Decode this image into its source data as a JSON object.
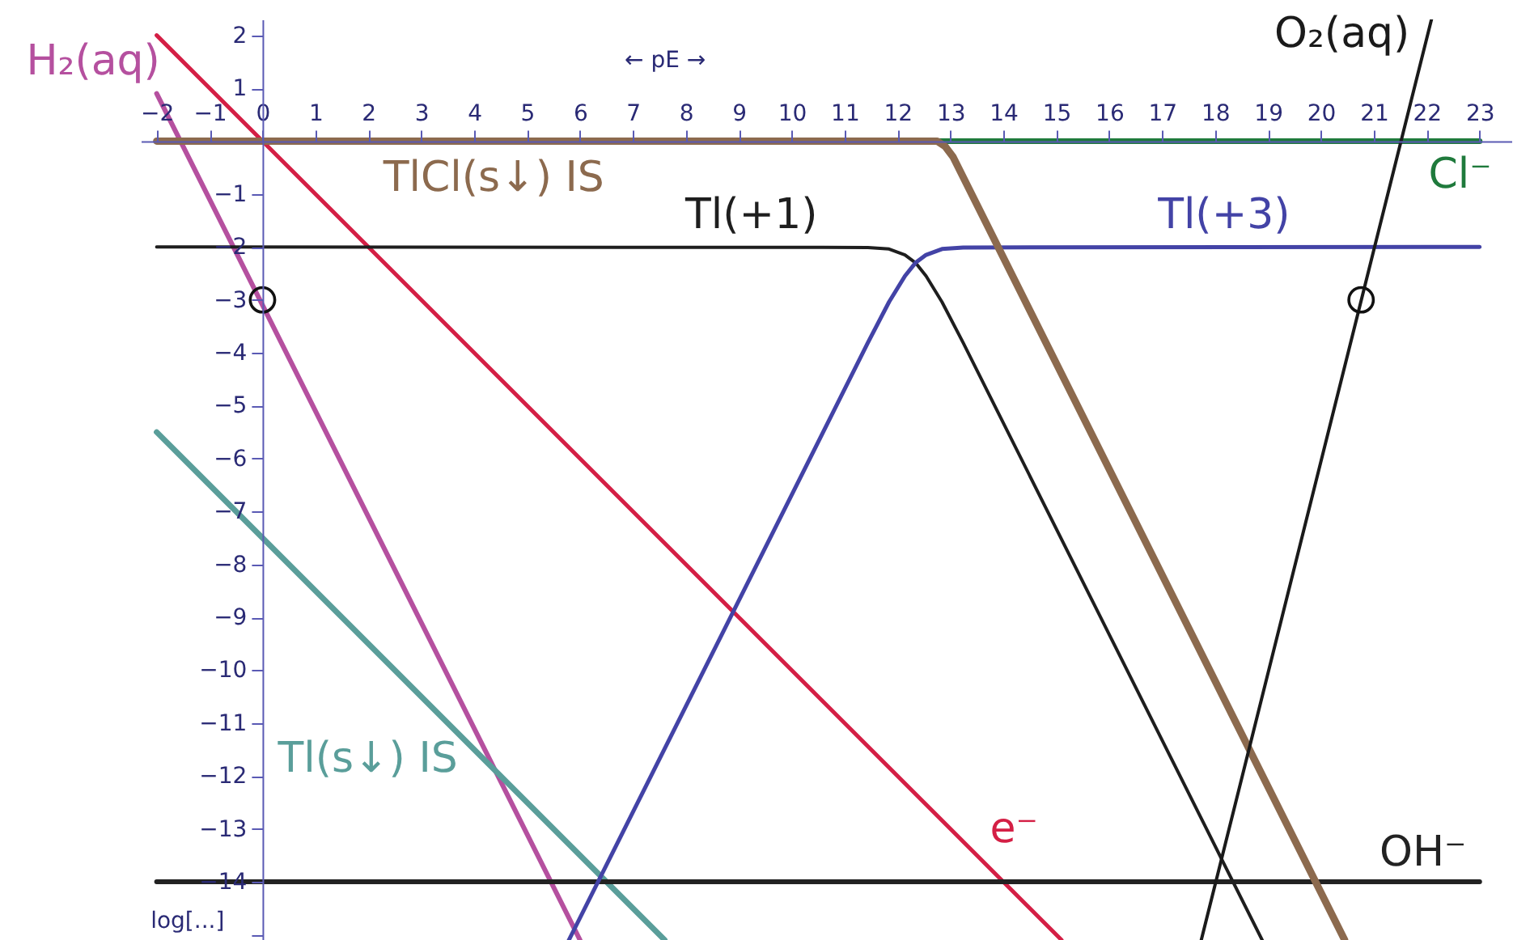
{
  "chart_data": {
    "type": "line",
    "xlabel": "← pE →",
    "ylabel": "log[...]",
    "xlim": [
      -2.3,
      23.6
    ],
    "ylim": [
      -15.1,
      2.3
    ],
    "xticks": [
      -2,
      -1,
      0,
      1,
      2,
      3,
      4,
      5,
      6,
      7,
      8,
      9,
      10,
      11,
      12,
      13,
      14,
      15,
      16,
      17,
      18,
      19,
      20,
      21,
      22,
      23
    ],
    "yticks": [
      2,
      1,
      -1,
      -2,
      -3,
      -4,
      -5,
      -6,
      -7,
      -8,
      -9,
      -10,
      -11,
      -12,
      -13,
      -14,
      {
        "value": -15,
        "label": null
      }
    ],
    "series": [
      {
        "name": "H₂(aq)",
        "color": "#b5509f",
        "x": [
          -2,
          6
        ],
        "values": [
          0.9,
          -15.1
        ]
      },
      {
        "name": "e⁻",
        "color": "#d41f45",
        "x": [
          -2,
          15.1
        ],
        "values": [
          2,
          -15.1
        ]
      },
      {
        "name": "Tl(s↓) IS",
        "color": "#5a9e9a",
        "x": [
          -2,
          7.6
        ],
        "values": [
          -5.5,
          -15.1
        ]
      },
      {
        "name": "OH⁻",
        "color": "#222222",
        "x": [
          -2,
          23
        ],
        "values": [
          -14,
          -14
        ]
      },
      {
        "name": "Tl(+1)",
        "color": "#1e1e1e",
        "x": [
          -2,
          11.44,
          11.84,
          12.14,
          12.34,
          12.54,
          12.84,
          13.24,
          18.89
        ],
        "values": [
          -2,
          -2.01,
          -2.04,
          -2.15,
          -2.3,
          -2.55,
          -3.04,
          -3.81,
          -15.1
        ]
      },
      {
        "name": "Tl(+3)",
        "color": "#4343a6",
        "x": [
          5.79,
          11.44,
          11.84,
          12.14,
          12.34,
          12.54,
          12.84,
          13.24,
          23
        ],
        "values": [
          -15.1,
          -3.81,
          -3.04,
          -2.55,
          -2.3,
          -2.15,
          -2.04,
          -2.01,
          -2
        ]
      },
      {
        "name": "Cl⁻",
        "color": "#1f7a3c",
        "x": [
          12.8,
          23
        ],
        "values": [
          0,
          0
        ]
      },
      {
        "name": "TlCl(s↓) IS",
        "color": "#8c6a4e",
        "x": [
          -2,
          12.75,
          12.9,
          13.05,
          20.45
        ],
        "values": [
          0,
          0,
          -0.1,
          -0.3,
          -15.1
        ]
      },
      {
        "name": "O₂(aq)",
        "color": "#1a1a1a",
        "x": [
          17.74,
          22.09
        ],
        "values": [
          -15.1,
          2.3
        ]
      },
      {
        "type": "scatter",
        "marker": "circle",
        "color": "#111111",
        "x": [
          0,
          20.76
        ],
        "values": [
          -3,
          -3
        ]
      }
    ]
  }
}
